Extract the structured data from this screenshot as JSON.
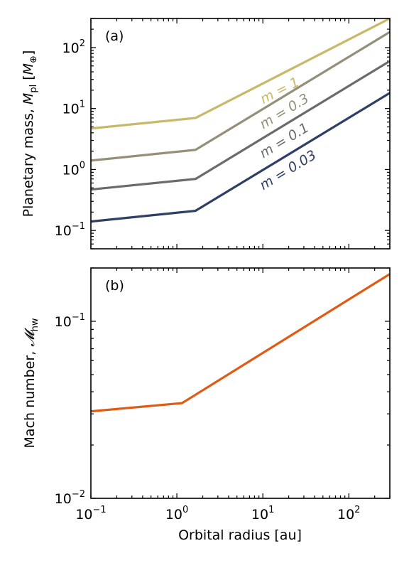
{
  "chart_data": [
    {
      "type": "line",
      "panel_label": "(a)",
      "xscale": "log",
      "yscale": "log",
      "xlim": [
        0.1,
        300
      ],
      "ylim": [
        0.05,
        300
      ],
      "xlabel": "",
      "ylabel": {
        "main": "Planetary mass, ",
        "sym": "M",
        "sub": "pl",
        "unit_open": " [",
        "unit_sym": "M",
        "unit_sub": "⊕",
        "unit_close": "]"
      },
      "yticks": [
        {
          "value": 0.1,
          "base": "10",
          "exp": "−1"
        },
        {
          "value": 1,
          "base": "10",
          "exp": "0"
        },
        {
          "value": 10,
          "base": "10",
          "exp": "1"
        },
        {
          "value": 100,
          "base": "10",
          "exp": "2"
        }
      ],
      "series": [
        {
          "name": "m = 1",
          "label_text": "m = 1",
          "color": "#c8b96a",
          "x": [
            0.1,
            1.65,
            300
          ],
          "y": [
            4.7,
            7.0,
            300
          ]
        },
        {
          "name": "m = 0.3",
          "label_text": "m = 0.3",
          "color": "#958f7a",
          "x": [
            0.1,
            1.65,
            300
          ],
          "y": [
            1.4,
            2.1,
            180
          ]
        },
        {
          "name": "m = 0.1",
          "label_text": "m = 0.1",
          "color": "#6b6b6b",
          "x": [
            0.1,
            1.65,
            300
          ],
          "y": [
            0.47,
            0.7,
            60
          ]
        },
        {
          "name": "m = 0.03",
          "label_text": "m = 0.03",
          "color": "#2f3e63",
          "x": [
            0.1,
            1.65,
            300
          ],
          "y": [
            0.14,
            0.21,
            18
          ]
        }
      ]
    },
    {
      "type": "line",
      "panel_label": "(b)",
      "xscale": "log",
      "yscale": "log",
      "xlim": [
        0.1,
        300
      ],
      "ylim": [
        0.01,
        0.2
      ],
      "xlabel": "Orbital radius [au]",
      "ylabel": {
        "main": "Mach number, ",
        "sym": "𝓜",
        "sub": "hw"
      },
      "xticks": [
        {
          "value": 0.1,
          "base": "10",
          "exp": "−1"
        },
        {
          "value": 1,
          "base": "10",
          "exp": "0"
        },
        {
          "value": 10,
          "base": "10",
          "exp": "1"
        },
        {
          "value": 100,
          "base": "10",
          "exp": "2"
        }
      ],
      "yticks": [
        {
          "value": 0.01,
          "base": "10",
          "exp": "−2"
        },
        {
          "value": 0.1,
          "base": "10",
          "exp": "−1"
        }
      ],
      "series": [
        {
          "name": "",
          "color": "#e05a14",
          "x": [
            0.1,
            1.15,
            300
          ],
          "y": [
            0.031,
            0.0345,
            0.185
          ]
        }
      ]
    }
  ]
}
